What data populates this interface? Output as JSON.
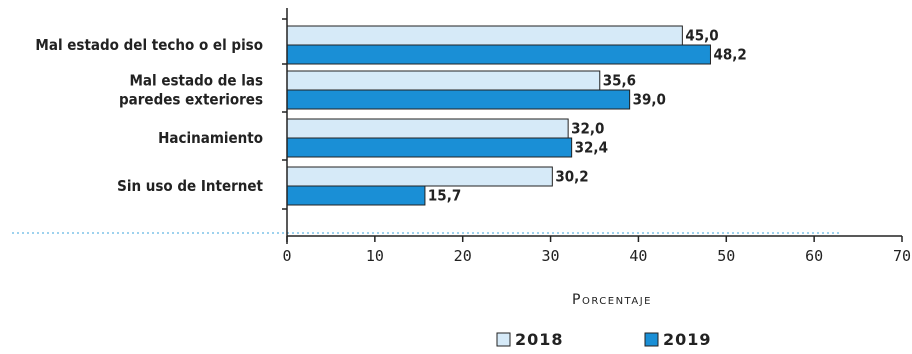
{
  "chart_data": {
    "type": "bar",
    "orientation": "horizontal",
    "categories": [
      [
        "Mal estado del techo o el piso"
      ],
      [
        "Mal estado de las",
        "paredes exteriores"
      ],
      [
        "Hacinamiento"
      ],
      [
        "Sin uso de Internet"
      ]
    ],
    "series": [
      {
        "name": "2018",
        "color": "#d6eaf8",
        "values": [
          45.0,
          35.6,
          32.0,
          30.2
        ],
        "labels": [
          "45,0",
          "35,6",
          "32,0",
          "30,2"
        ]
      },
      {
        "name": "2019",
        "color": "#1a8fd6",
        "values": [
          48.2,
          39.0,
          32.4,
          15.7
        ],
        "labels": [
          "48,2",
          "39,0",
          "32,4",
          "15,7"
        ]
      }
    ],
    "xlim": [
      0,
      70
    ],
    "xticks": [
      0,
      10,
      20,
      30,
      40,
      50,
      60,
      70
    ],
    "xlabel": "Porcentaje",
    "ylabel": "",
    "title": "",
    "legend": "bottom-center",
    "grid": false
  }
}
